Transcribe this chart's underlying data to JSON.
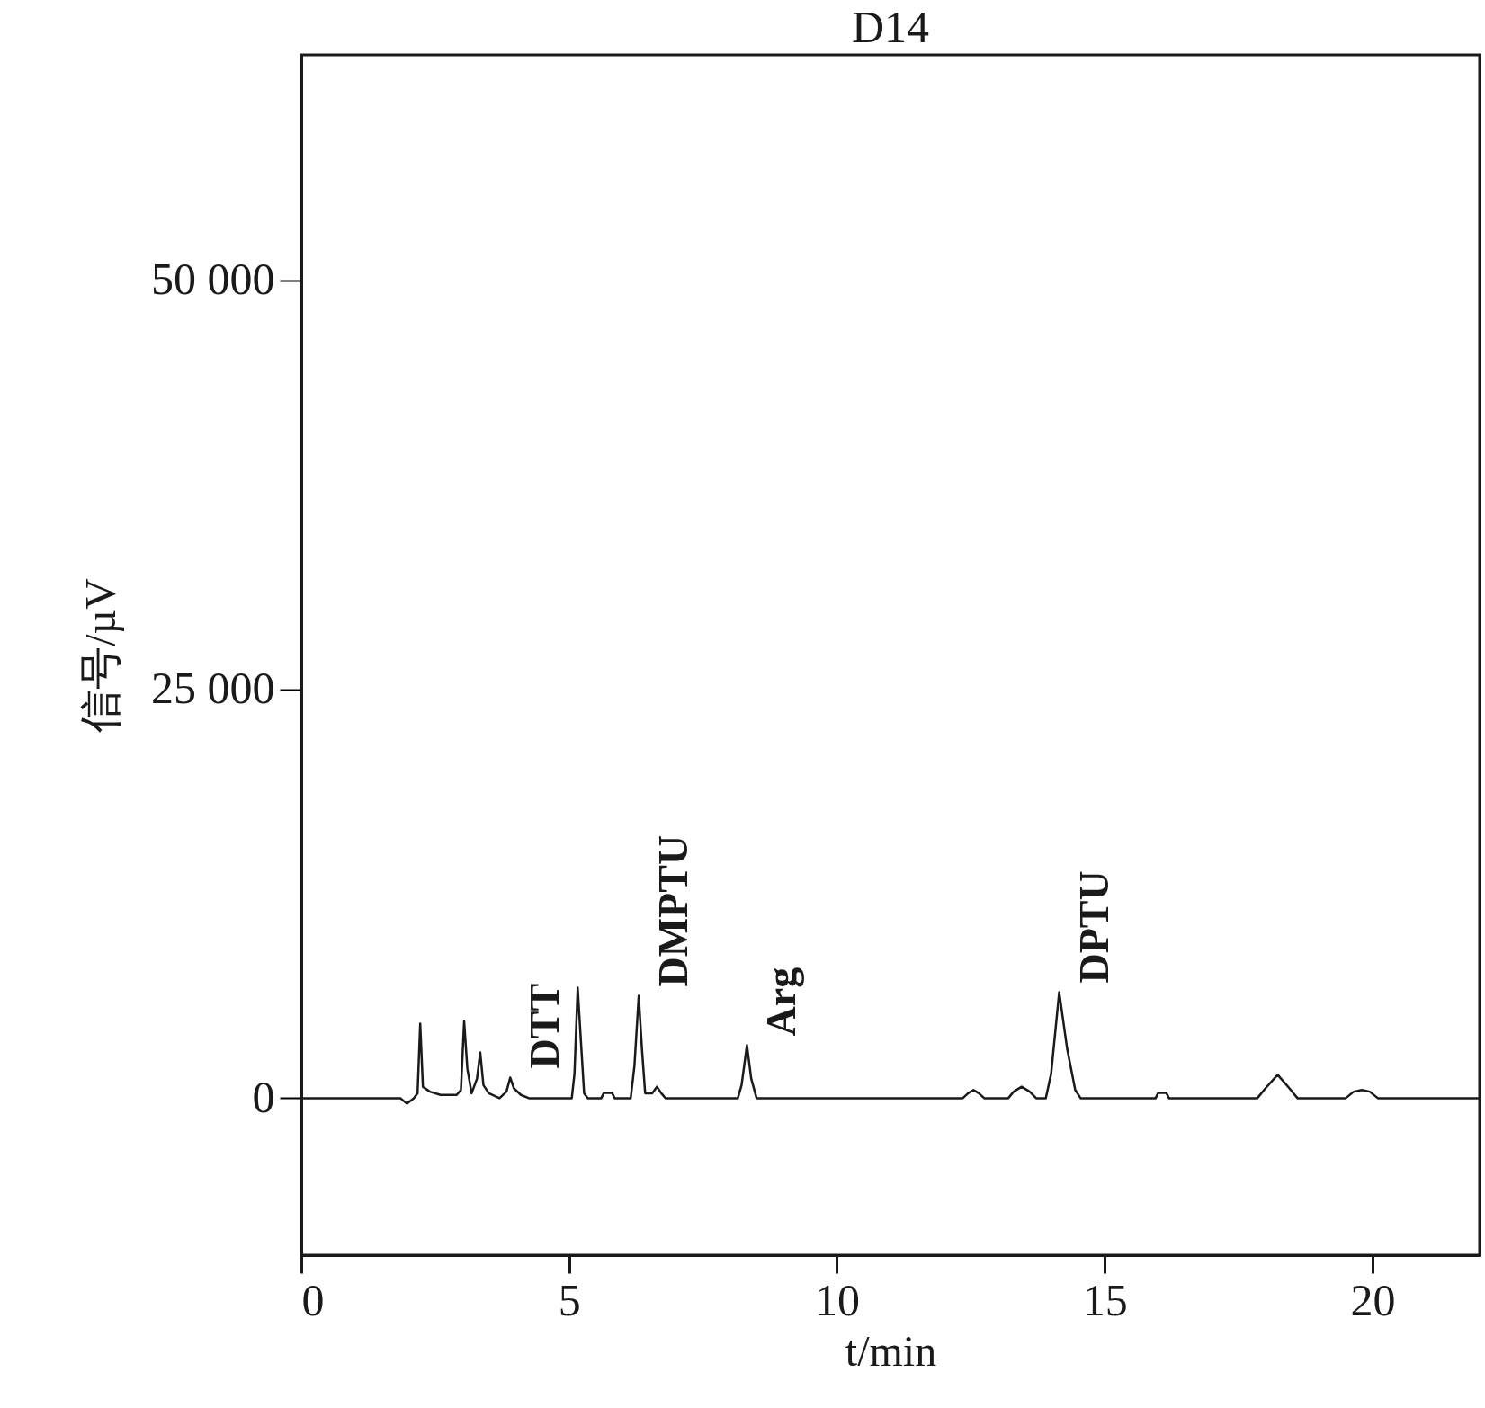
{
  "chart_data": {
    "type": "line",
    "title": "D14",
    "xlabel": "t/min",
    "ylabel": "信号/µV",
    "xlim": [
      0,
      22
    ],
    "ylim": [
      -9600,
      63800
    ],
    "xticks": [
      0,
      5,
      10,
      15,
      20
    ],
    "yticks": [
      0,
      {
        "value": 25000,
        "label": "25 000"
      },
      {
        "value": 50000,
        "label": "50 000"
      }
    ],
    "grid": false,
    "marker": "none",
    "line_style": "solid",
    "annotations": [
      {
        "text": "DTT",
        "x": 3.9,
        "y": 1260
      },
      {
        "text": "DMPTU",
        "x": 6.3,
        "y": 6260
      },
      {
        "text": "Arg",
        "x": 8.32,
        "y": 3240
      },
      {
        "text": "DPTU",
        "x": 14.15,
        "y": 6480
      }
    ],
    "x": [
      0,
      1.85,
      1.97,
      2.1,
      2.17,
      2.22,
      2.27,
      2.4,
      2.6,
      2.9,
      2.98,
      3.04,
      3.1,
      3.18,
      3.28,
      3.34,
      3.4,
      3.5,
      3.7,
      3.83,
      3.9,
      3.97,
      4.1,
      4.25,
      5.05,
      5.1,
      5.16,
      5.22,
      5.28,
      5.35,
      5.6,
      5.65,
      5.8,
      5.85,
      6.15,
      6.22,
      6.3,
      6.36,
      6.42,
      6.55,
      6.64,
      6.72,
      6.8,
      8.15,
      8.22,
      8.32,
      8.4,
      8.5,
      12.35,
      12.45,
      12.55,
      12.65,
      12.75,
      13.2,
      13.3,
      13.45,
      13.6,
      13.72,
      13.9,
      14.0,
      14.15,
      14.3,
      14.45,
      14.55,
      15.95,
      16.0,
      16.15,
      16.2,
      17.85,
      18.0,
      18.23,
      18.45,
      18.6,
      19.5,
      19.65,
      19.8,
      19.95,
      20.1,
      21.97
    ],
    "series": [
      {
        "color": "#1a1a1a",
        "values": [
          0,
          0,
          -330,
          0,
          300,
          4560,
          700,
          400,
          200,
          200,
          500,
          4700,
          1800,
          300,
          1200,
          2800,
          800,
          300,
          0,
          400,
          1260,
          600,
          200,
          0,
          0,
          1500,
          6760,
          3500,
          300,
          0,
          0,
          330,
          330,
          0,
          0,
          2000,
          6260,
          3000,
          300,
          300,
          700,
          300,
          0,
          0,
          800,
          3240,
          1200,
          0,
          0,
          300,
          500,
          300,
          0,
          0,
          400,
          700,
          400,
          0,
          0,
          1500,
          6480,
          3000,
          500,
          0,
          0,
          330,
          330,
          0,
          0,
          600,
          1430,
          600,
          0,
          0,
          400,
          500,
          400,
          0,
          0
        ]
      }
    ]
  }
}
